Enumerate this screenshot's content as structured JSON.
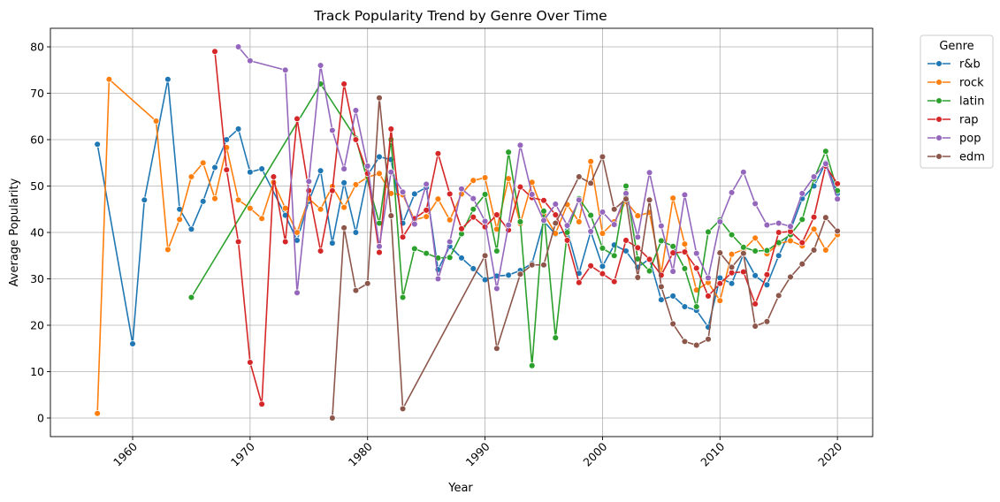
{
  "chart_data": {
    "type": "line",
    "title": "Track Popularity Trend by Genre Over Time",
    "xlabel": "Year",
    "ylabel": "Average Popularity",
    "xlim": [
      1953,
      2023
    ],
    "ylim": [
      -4,
      84
    ],
    "xticks": [
      1960,
      1970,
      1980,
      1990,
      2000,
      2010,
      2020
    ],
    "yticks": [
      0,
      10,
      20,
      30,
      40,
      50,
      60,
      70,
      80
    ],
    "grid": true,
    "legend": {
      "title": "Genre",
      "placement": "outside-top-right"
    },
    "series": [
      {
        "name": "r&b",
        "color": "#1f77b4",
        "points": [
          [
            1957,
            59
          ],
          [
            1960,
            16
          ],
          [
            1961,
            47
          ],
          [
            1963,
            73
          ],
          [
            1964,
            45
          ],
          [
            1965,
            40.7
          ],
          [
            1966,
            46.7
          ],
          [
            1967,
            54
          ],
          [
            1968,
            60
          ],
          [
            1969,
            62.3
          ],
          [
            1970,
            53
          ],
          [
            1971,
            53.7
          ],
          [
            1973,
            43.7
          ],
          [
            1974,
            38.3
          ],
          [
            1975,
            46.7
          ],
          [
            1976,
            53.3
          ],
          [
            1977,
            37.7
          ],
          [
            1978,
            50.7
          ],
          [
            1979,
            40
          ],
          [
            1980,
            52.3
          ],
          [
            1981,
            56.3
          ],
          [
            1982,
            55.7
          ],
          [
            1983,
            42
          ],
          [
            1984,
            48.3
          ],
          [
            1985,
            49.7
          ],
          [
            1986,
            32
          ],
          [
            1987,
            37
          ],
          [
            1988,
            34.5
          ],
          [
            1989,
            32.2
          ],
          [
            1990,
            29.8
          ],
          [
            1991,
            30.6
          ],
          [
            1992,
            30.8
          ],
          [
            1993,
            31.8
          ],
          [
            1994,
            33.3
          ],
          [
            1995,
            42.4
          ],
          [
            1996,
            39.6
          ],
          [
            1997,
            40.4
          ],
          [
            1998,
            31.2
          ],
          [
            1999,
            40.2
          ],
          [
            2000,
            32.7
          ],
          [
            2001,
            37.3
          ],
          [
            2002,
            36
          ],
          [
            2003,
            32.5
          ],
          [
            2004,
            34.3
          ],
          [
            2005,
            25.5
          ],
          [
            2006,
            26.3
          ],
          [
            2007,
            24
          ],
          [
            2008,
            23.2
          ],
          [
            2009,
            19.6
          ],
          [
            2010,
            30.2
          ],
          [
            2011,
            29
          ],
          [
            2012,
            35.3
          ],
          [
            2013,
            30.7
          ],
          [
            2014,
            28.7
          ],
          [
            2015,
            35
          ],
          [
            2016,
            40.5
          ],
          [
            2017,
            47.3
          ],
          [
            2018,
            50
          ],
          [
            2019,
            55
          ],
          [
            2020,
            48.4
          ]
        ]
      },
      {
        "name": "rock",
        "color": "#ff7f0e",
        "points": [
          [
            1957,
            1
          ],
          [
            1958,
            73
          ],
          [
            1962,
            64
          ],
          [
            1963,
            36.3
          ],
          [
            1964,
            42.8
          ],
          [
            1965,
            52
          ],
          [
            1966,
            55
          ],
          [
            1967,
            47.3
          ],
          [
            1968,
            58.3
          ],
          [
            1969,
            47
          ],
          [
            1970,
            45.2
          ],
          [
            1971,
            43
          ],
          [
            1972,
            50.8
          ],
          [
            1973,
            45.2
          ],
          [
            1974,
            40
          ],
          [
            1975,
            47.3
          ],
          [
            1976,
            45
          ],
          [
            1977,
            49.9
          ],
          [
            1978,
            45.4
          ],
          [
            1979,
            50.3
          ],
          [
            1980,
            51.9
          ],
          [
            1981,
            52.7
          ],
          [
            1982,
            48.4
          ],
          [
            1983,
            48.1
          ],
          [
            1984,
            42.7
          ],
          [
            1985,
            43.4
          ],
          [
            1986,
            47.2
          ],
          [
            1987,
            42.7
          ],
          [
            1988,
            48.3
          ],
          [
            1989,
            51.2
          ],
          [
            1990,
            51.8
          ],
          [
            1991,
            40.7
          ],
          [
            1992,
            51.6
          ],
          [
            1993,
            41.9
          ],
          [
            1994,
            50.8
          ],
          [
            1995,
            44
          ],
          [
            1996,
            39.8
          ],
          [
            1997,
            46
          ],
          [
            1998,
            42.3
          ],
          [
            1999,
            55.3
          ],
          [
            2000,
            39.8
          ],
          [
            2001,
            42.3
          ],
          [
            2002,
            46.7
          ],
          [
            2003,
            43.6
          ],
          [
            2004,
            44.3
          ],
          [
            2005,
            31.2
          ],
          [
            2006,
            47.4
          ],
          [
            2007,
            37.5
          ],
          [
            2008,
            27.6
          ],
          [
            2009,
            29.2
          ],
          [
            2010,
            25.3
          ],
          [
            2011,
            35.3
          ],
          [
            2012,
            36.3
          ],
          [
            2013,
            38.8
          ],
          [
            2014,
            35.4
          ],
          [
            2015,
            37.6
          ],
          [
            2016,
            38.2
          ],
          [
            2017,
            37.1
          ],
          [
            2018,
            40.7
          ],
          [
            2019,
            36.2
          ],
          [
            2020,
            39.5
          ]
        ]
      },
      {
        "name": "latin",
        "color": "#2ca02c",
        "points": [
          [
            1965,
            26
          ],
          [
            1976,
            72
          ],
          [
            1979,
            60.3
          ],
          [
            1981,
            42
          ],
          [
            1982,
            60
          ],
          [
            1983,
            26
          ],
          [
            1984,
            36.5
          ],
          [
            1985,
            35.5
          ],
          [
            1986,
            34.5
          ],
          [
            1987,
            34.6
          ],
          [
            1988,
            39.7
          ],
          [
            1989,
            45
          ],
          [
            1990,
            48.2
          ],
          [
            1991,
            36
          ],
          [
            1992,
            57.3
          ],
          [
            1993,
            42.3
          ],
          [
            1994,
            11.3
          ],
          [
            1995,
            44.6
          ],
          [
            1996,
            17.3
          ],
          [
            1997,
            40
          ],
          [
            1998,
            47.3
          ],
          [
            1999,
            43.7
          ],
          [
            2000,
            36.6
          ],
          [
            2001,
            35
          ],
          [
            2002,
            50
          ],
          [
            2003,
            34.3
          ],
          [
            2004,
            31.7
          ],
          [
            2005,
            38.2
          ],
          [
            2006,
            37
          ],
          [
            2007,
            32.2
          ],
          [
            2008,
            24
          ],
          [
            2009,
            40.1
          ],
          [
            2010,
            42.7
          ],
          [
            2011,
            39.5
          ],
          [
            2012,
            36.8
          ],
          [
            2013,
            36
          ],
          [
            2014,
            36.1
          ],
          [
            2015,
            37.8
          ],
          [
            2016,
            39.5
          ],
          [
            2017,
            42.8
          ],
          [
            2018,
            51.5
          ],
          [
            2019,
            57.5
          ],
          [
            2020,
            49
          ]
        ]
      },
      {
        "name": "rap",
        "color": "#d62728",
        "points": [
          [
            1967,
            79
          ],
          [
            1968,
            53.5
          ],
          [
            1969,
            38
          ],
          [
            1970,
            12
          ],
          [
            1971,
            3
          ],
          [
            1972,
            52
          ],
          [
            1973,
            38
          ],
          [
            1974,
            64.5
          ],
          [
            1975,
            49
          ],
          [
            1976,
            36
          ],
          [
            1977,
            49
          ],
          [
            1978,
            72
          ],
          [
            1979,
            60
          ],
          [
            1980,
            52.7
          ],
          [
            1981,
            35.7
          ],
          [
            1982,
            62.3
          ],
          [
            1983,
            39
          ],
          [
            1984,
            43
          ],
          [
            1985,
            44.8
          ],
          [
            1986,
            57
          ],
          [
            1987,
            48.3
          ],
          [
            1988,
            40.8
          ],
          [
            1989,
            43.3
          ],
          [
            1990,
            41.2
          ],
          [
            1991,
            43.8
          ],
          [
            1992,
            40.5
          ],
          [
            1993,
            49.8
          ],
          [
            1994,
            47.5
          ],
          [
            1995,
            46.9
          ],
          [
            1996,
            43.8
          ],
          [
            1997,
            38.3
          ],
          [
            1998,
            29.2
          ],
          [
            1999,
            32.8
          ],
          [
            2000,
            31.1
          ],
          [
            2001,
            29.4
          ],
          [
            2002,
            38.3
          ],
          [
            2003,
            36.7
          ],
          [
            2004,
            34.2
          ],
          [
            2005,
            30.8
          ],
          [
            2006,
            35.6
          ],
          [
            2007,
            35.8
          ],
          [
            2008,
            32.3
          ],
          [
            2009,
            26.3
          ],
          [
            2010,
            29
          ],
          [
            2011,
            31.3
          ],
          [
            2012,
            31.5
          ],
          [
            2013,
            24.6
          ],
          [
            2014,
            30.9
          ],
          [
            2015,
            40
          ],
          [
            2016,
            40.2
          ],
          [
            2017,
            37.8
          ],
          [
            2018,
            43.3
          ],
          [
            2019,
            54.3
          ],
          [
            2020,
            50.5
          ]
        ]
      },
      {
        "name": "pop",
        "color": "#9467bd",
        "points": [
          [
            1969,
            80
          ],
          [
            1970,
            77
          ],
          [
            1973,
            75
          ],
          [
            1974,
            27
          ],
          [
            1975,
            51
          ],
          [
            1976,
            76
          ],
          [
            1977,
            62
          ],
          [
            1978,
            53.7
          ],
          [
            1979,
            66.3
          ],
          [
            1980,
            54.3
          ],
          [
            1981,
            37
          ],
          [
            1982,
            53
          ],
          [
            1983,
            48.7
          ],
          [
            1984,
            41.8
          ],
          [
            1985,
            50.4
          ],
          [
            1986,
            30
          ],
          [
            1987,
            38
          ],
          [
            1988,
            49.4
          ],
          [
            1989,
            47.3
          ],
          [
            1990,
            42.4
          ],
          [
            1991,
            27.9
          ],
          [
            1992,
            41.6
          ],
          [
            1993,
            58.8
          ],
          [
            1994,
            48.2
          ],
          [
            1995,
            42.6
          ],
          [
            1996,
            46.1
          ],
          [
            1997,
            41.5
          ],
          [
            1998,
            47
          ],
          [
            1999,
            40.2
          ],
          [
            2000,
            44.4
          ],
          [
            2001,
            41.7
          ],
          [
            2002,
            48.4
          ],
          [
            2003,
            39
          ],
          [
            2004,
            52.9
          ],
          [
            2005,
            41.4
          ],
          [
            2006,
            31.6
          ],
          [
            2007,
            48.1
          ],
          [
            2008,
            35.5
          ],
          [
            2009,
            30.2
          ],
          [
            2010,
            42.3
          ],
          [
            2011,
            48.6
          ],
          [
            2012,
            53
          ],
          [
            2013,
            46.2
          ],
          [
            2014,
            41.6
          ],
          [
            2015,
            42
          ],
          [
            2016,
            41.3
          ],
          [
            2017,
            48.4
          ],
          [
            2018,
            52
          ],
          [
            2019,
            54.8
          ],
          [
            2020,
            47.2
          ]
        ]
      },
      {
        "name": "edm",
        "color": "#8c564b",
        "points": [
          [
            1977,
            0
          ],
          [
            1978,
            41
          ],
          [
            1979,
            27.5
          ],
          [
            1980,
            29
          ],
          [
            1981,
            69
          ],
          [
            1982,
            43.6
          ],
          [
            1983,
            2
          ],
          [
            1990,
            35
          ],
          [
            1991,
            15
          ],
          [
            1993,
            31
          ],
          [
            1994,
            33
          ],
          [
            1995,
            33
          ],
          [
            1996,
            42
          ],
          [
            1998,
            52
          ],
          [
            1999,
            50.6
          ],
          [
            2000,
            56.3
          ],
          [
            2001,
            45
          ],
          [
            2002,
            47.2
          ],
          [
            2003,
            30.3
          ],
          [
            2004,
            47
          ],
          [
            2005,
            28.3
          ],
          [
            2006,
            20.3
          ],
          [
            2007,
            16.5
          ],
          [
            2008,
            15.7
          ],
          [
            2009,
            17
          ],
          [
            2010,
            35.6
          ],
          [
            2011,
            32.5
          ],
          [
            2012,
            35.5
          ],
          [
            2013,
            19.8
          ],
          [
            2014,
            20.8
          ],
          [
            2015,
            26.4
          ],
          [
            2016,
            30.4
          ],
          [
            2017,
            33.2
          ],
          [
            2018,
            36.2
          ],
          [
            2019,
            43.2
          ],
          [
            2020,
            40.3
          ]
        ]
      }
    ]
  }
}
